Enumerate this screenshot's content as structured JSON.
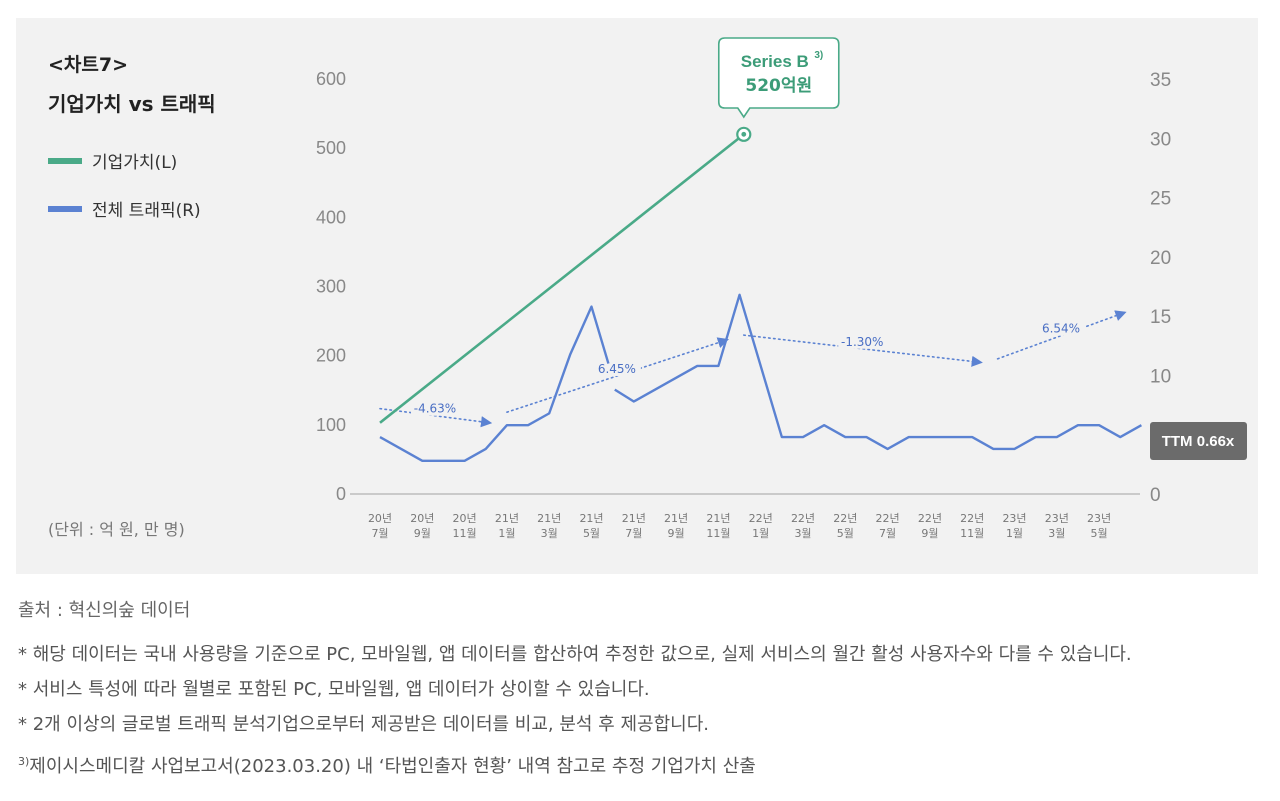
{
  "header": {
    "chart_label": "<차트7>",
    "chart_title": "기업가치 vs 트래픽"
  },
  "legend": [
    {
      "label": "기업가치(L)",
      "color": "#4aaa88"
    },
    {
      "label": "전체 트래픽(R)",
      "color": "#5b82d2"
    }
  ],
  "unit_text": "(단위 : 억 원, 만 명)",
  "chart_data": {
    "type": "line",
    "categories": [
      {
        "year": "20년",
        "month": "7월"
      },
      {
        "year": "20년",
        "month": "9월"
      },
      {
        "year": "20년",
        "month": "11월"
      },
      {
        "year": "21년",
        "month": "1월"
      },
      {
        "year": "21년",
        "month": "3월"
      },
      {
        "year": "21년",
        "month": "5월"
      },
      {
        "year": "21년",
        "month": "7월"
      },
      {
        "year": "21년",
        "month": "9월"
      },
      {
        "year": "21년",
        "month": "11월"
      },
      {
        "year": "22년",
        "month": "1월"
      },
      {
        "year": "22년",
        "month": "3월"
      },
      {
        "year": "22년",
        "month": "5월"
      },
      {
        "year": "22년",
        "month": "7월"
      },
      {
        "year": "22년",
        "month": "9월"
      },
      {
        "year": "22년",
        "month": "11월"
      },
      {
        "year": "23년",
        "month": "1월"
      },
      {
        "year": "23년",
        "month": "3월"
      },
      {
        "year": "23년",
        "month": "5월"
      }
    ],
    "y_left": {
      "min": 0,
      "max": 600,
      "ticks": [
        "0",
        "100",
        "200",
        "300",
        "400",
        "500",
        "600"
      ]
    },
    "y_right": {
      "min": 0,
      "max": 35,
      "ticks": [
        "0",
        "5",
        "10",
        "15",
        "20",
        "25",
        "30",
        "35"
      ]
    },
    "series": [
      {
        "name": "기업가치(L)",
        "axis": "left",
        "color": "#4aaa88",
        "points": [
          {
            "x": 0,
            "y": 103
          },
          {
            "x": 8.6,
            "y": 520
          }
        ]
      },
      {
        "name": "전체 트래픽(R)",
        "axis": "right",
        "color": "#5b82d2",
        "segments": [
          [
            {
              "x": 0,
              "y": 4.8
            },
            {
              "x": 0.5,
              "y": 3.8
            },
            {
              "x": 1,
              "y": 2.8
            },
            {
              "x": 1.5,
              "y": 2.8
            },
            {
              "x": 2,
              "y": 2.8
            },
            {
              "x": 2.5,
              "y": 3.8
            },
            {
              "x": 3,
              "y": 5.8
            },
            {
              "x": 3.5,
              "y": 5.8
            },
            {
              "x": 4,
              "y": 6.8
            },
            {
              "x": 4.5,
              "y": 11.8
            },
            {
              "x": 5,
              "y": 15.8
            },
            {
              "x": 5.4,
              "y": 11.0
            }
          ],
          [
            {
              "x": 5.55,
              "y": 8.8
            },
            {
              "x": 6,
              "y": 7.8
            },
            {
              "x": 6.5,
              "y": 8.8
            },
            {
              "x": 7,
              "y": 9.8
            },
            {
              "x": 7.5,
              "y": 10.8
            },
            {
              "x": 8,
              "y": 10.8
            },
            {
              "x": 8.5,
              "y": 16.8
            },
            {
              "x": 9,
              "y": 10.8
            },
            {
              "x": 9.5,
              "y": 4.8
            },
            {
              "x": 10,
              "y": 4.8
            },
            {
              "x": 10.5,
              "y": 5.8
            },
            {
              "x": 11,
              "y": 4.8
            },
            {
              "x": 11.5,
              "y": 4.8
            },
            {
              "x": 12,
              "y": 3.8
            },
            {
              "x": 12.5,
              "y": 4.8
            },
            {
              "x": 13,
              "y": 4.8
            },
            {
              "x": 13.5,
              "y": 4.8
            },
            {
              "x": 14,
              "y": 4.8
            },
            {
              "x": 14.5,
              "y": 3.8
            },
            {
              "x": 15,
              "y": 3.8
            },
            {
              "x": 15.5,
              "y": 4.8
            },
            {
              "x": 16,
              "y": 4.8
            },
            {
              "x": 16.5,
              "y": 5.8
            },
            {
              "x": 17,
              "y": 5.8
            },
            {
              "x": 17.5,
              "y": 4.8
            },
            {
              "x": 18,
              "y": 5.8
            }
          ]
        ]
      }
    ],
    "trend_annotations": [
      {
        "label": "-4.63%",
        "from": {
          "x": 0,
          "y": 7.2
        },
        "to": {
          "x": 2.6,
          "y": 6.0
        }
      },
      {
        "label": "6.45%",
        "from": {
          "x": 3,
          "y": 6.9
        },
        "to": {
          "x": 8.2,
          "y": 13.0
        }
      },
      {
        "label": "-1.30%",
        "from": {
          "x": 8.6,
          "y": 13.4
        },
        "to": {
          "x": 14.2,
          "y": 11.1
        }
      },
      {
        "label": "6.54%",
        "from": {
          "x": 14.6,
          "y": 11.4
        },
        "to": {
          "x": 17.6,
          "y": 15.3
        }
      }
    ],
    "callout": {
      "title": "Series B",
      "title_sup": "3)",
      "value": "520억원"
    },
    "ttm_label": "TTM 0.66x"
  },
  "footer": {
    "source": "출처 : 혁신의숲 데이터",
    "notes": [
      "* 해당 데이터는 국내 사용량을 기준으로 PC, 모바일웹, 앱 데이터를 합산하여 추정한 값으로, 실제 서비스의 월간 활성 사용자수와 다를 수 있습니다.",
      "* 서비스 특성에 따라 월별로 포함된 PC, 모바일웹, 앱 데이터가 상이할 수 있습니다.",
      "* 2개 이상의 글로벌 트래픽 분석기업으로부터 제공받은 데이터를 비교, 분석 후 제공합니다."
    ],
    "footnote_mark": "3)",
    "footnote": "제이시스메디칼 사업보고서(2023.03.20) 내 ‘타법인출자 현황’ 내역 참고로 추정 기업가치 산출"
  }
}
